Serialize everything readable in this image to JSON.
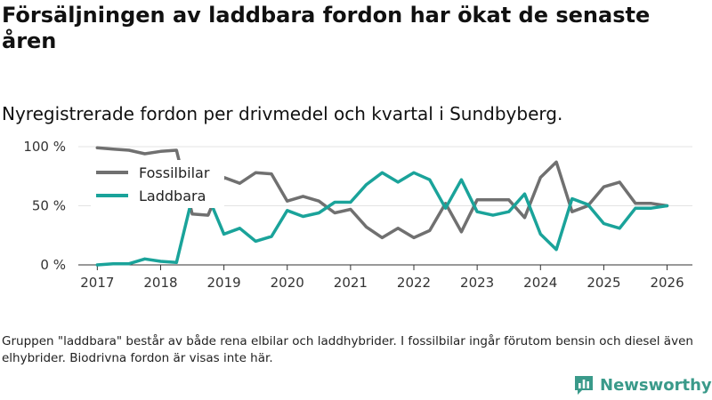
{
  "title": "Försäljningen av laddbara fordon har ökat de senaste åren",
  "subtitle": "Nyregistrerade fordon per drivmedel och kvartal i Sundbyberg.",
  "note": "Gruppen \"laddbara\" består av både rena elbilar och laddhybrider. I fossilbilar ingår förutom bensin och diesel även elhybrider. Biodrivna fordon är visas inte här.",
  "brand": {
    "name": "Newsworthy",
    "logo_icon": "newsworthy-logo-icon",
    "color": "#3a9a8a"
  },
  "chart_data": {
    "type": "line",
    "x_unit": "year",
    "x": [
      2017.0,
      2017.25,
      2017.5,
      2017.75,
      2018.0,
      2018.25,
      2018.5,
      2018.75,
      2019.0,
      2019.25,
      2019.5,
      2019.75,
      2020.0,
      2020.25,
      2020.5,
      2020.75,
      2021.0,
      2021.25,
      2021.5,
      2021.75,
      2022.0,
      2022.25,
      2022.5,
      2022.75,
      2023.0,
      2023.25,
      2023.5,
      2023.75,
      2024.0,
      2024.25,
      2024.5,
      2024.75,
      2025.0,
      2025.25,
      2025.5,
      2025.75,
      2026.0
    ],
    "series": [
      {
        "name": "Fossilbilar",
        "color": "#707070",
        "values": [
          99,
          98,
          97,
          94,
          96,
          97,
          43,
          42,
          74,
          69,
          78,
          77,
          54,
          58,
          54,
          44,
          47,
          32,
          23,
          31,
          23,
          29,
          52,
          28,
          55,
          55,
          55,
          40,
          74,
          87,
          45,
          50,
          66,
          70,
          52,
          52,
          50
        ]
      },
      {
        "name": "Laddbara",
        "color": "#1aa39a",
        "values": [
          0,
          1,
          1,
          5,
          3,
          2,
          57,
          58,
          26,
          31,
          20,
          24,
          46,
          41,
          44,
          53,
          53,
          68,
          78,
          70,
          78,
          72,
          48,
          72,
          45,
          42,
          45,
          60,
          26,
          13,
          56,
          51,
          35,
          31,
          48,
          48,
          50
        ]
      }
    ],
    "xlim": [
      2016.7,
      2026.4
    ],
    "ylim": [
      0,
      100
    ],
    "y_ticks": [
      0,
      50,
      100
    ],
    "y_tick_labels": [
      "0 %",
      "50 %",
      "100 %"
    ],
    "x_ticks": [
      2017,
      2018,
      2019,
      2020,
      2021,
      2022,
      2023,
      2024,
      2025,
      2026
    ],
    "x_tick_labels": [
      "2017",
      "2018",
      "2019",
      "2020",
      "2021",
      "2022",
      "2023",
      "2024",
      "2025",
      "2026"
    ],
    "grid": "horizontal",
    "legend": {
      "position": "top-left",
      "entries": [
        "Fossilbilar",
        "Laddbara"
      ]
    }
  }
}
